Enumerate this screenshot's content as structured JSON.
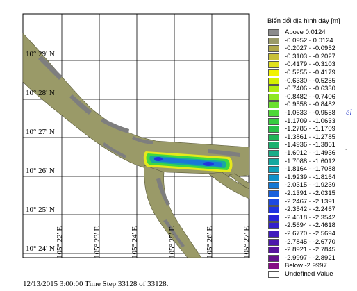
{
  "map": {
    "latitude_labels": [
      "10° 29' N",
      "10° 28' N",
      "10° 27' N",
      "10° 26' N",
      "10° 25' N",
      "10° 24' N"
    ],
    "longitude_labels": [
      "105° 22' E",
      "105° 23' E",
      "105° 24' E",
      "105° 25' E",
      "105° 26' E",
      "105° 27' E"
    ]
  },
  "legend": {
    "title": "Biến đổi địa hình đáy [m]",
    "items": [
      {
        "label": "Above    0.0124",
        "color": "#8c8c8c"
      },
      {
        "label": "-0.0952 -  0.0124",
        "color": "#9a9a68"
      },
      {
        "label": "-0.2027 - -0.0952",
        "color": "#b0a84a"
      },
      {
        "label": "-0.3103 - -0.2027",
        "color": "#c8c038"
      },
      {
        "label": "-0.4179 - -0.3103",
        "color": "#e0e020"
      },
      {
        "label": "-0.5255 - -0.4179",
        "color": "#f2f200"
      },
      {
        "label": "-0.6330 - -0.5255",
        "color": "#d4f000"
      },
      {
        "label": "-0.7406 - -0.6330",
        "color": "#b0ec10"
      },
      {
        "label": "-0.8482 - -0.7406",
        "color": "#8ee820"
      },
      {
        "label": "-0.9558 - -0.8482",
        "color": "#6ce030"
      },
      {
        "label": "-1.0633 - -0.9558",
        "color": "#4ed838"
      },
      {
        "label": "-1.1709 - -1.0633",
        "color": "#38cc40"
      },
      {
        "label": "-1.2785 - -1.1709",
        "color": "#28c048"
      },
      {
        "label": "-1.3861 - -1.2785",
        "color": "#20b458"
      },
      {
        "label": "-1.4936 - -1.3861",
        "color": "#1cb070"
      },
      {
        "label": "-1.6012 - -1.4936",
        "color": "#18ac88"
      },
      {
        "label": "-1.7088 - -1.6012",
        "color": "#14a8a0"
      },
      {
        "label": "-1.8164 - -1.7088",
        "color": "#10a0b8"
      },
      {
        "label": "-1.9239 - -1.8164",
        "color": "#1090c8"
      },
      {
        "label": "-2.0315 - -1.9239",
        "color": "#1478d4"
      },
      {
        "label": "-2.1391 - -2.0315",
        "color": "#1860dc"
      },
      {
        "label": "-2.2467 - -2.1391",
        "color": "#1c48e0"
      },
      {
        "label": "-2.3542 - -2.2467",
        "color": "#2034e0"
      },
      {
        "label": "-2.4618 - -2.3542",
        "color": "#2824d8"
      },
      {
        "label": "-2.5694 - -2.4618",
        "color": "#3420cc"
      },
      {
        "label": "-2.6770 - -2.5694",
        "color": "#401cbc"
      },
      {
        "label": "-2.7845 - -2.6770",
        "color": "#4c18ac"
      },
      {
        "label": "-2.8921 - -2.7845",
        "color": "#58149c"
      },
      {
        "label": "-2.9997 - -2.8921",
        "color": "#64108c"
      },
      {
        "label": "Below    -2.9997",
        "color": "#840c84"
      },
      {
        "label": "Undefined Value",
        "color": "#ffffff"
      }
    ]
  },
  "footer": {
    "timestamp": "12/13/2015 3:00:00  Time Step 33128 of 33128."
  },
  "edge_glyphs": {
    "glyph_1": "el",
    "glyph_2": "-"
  }
}
